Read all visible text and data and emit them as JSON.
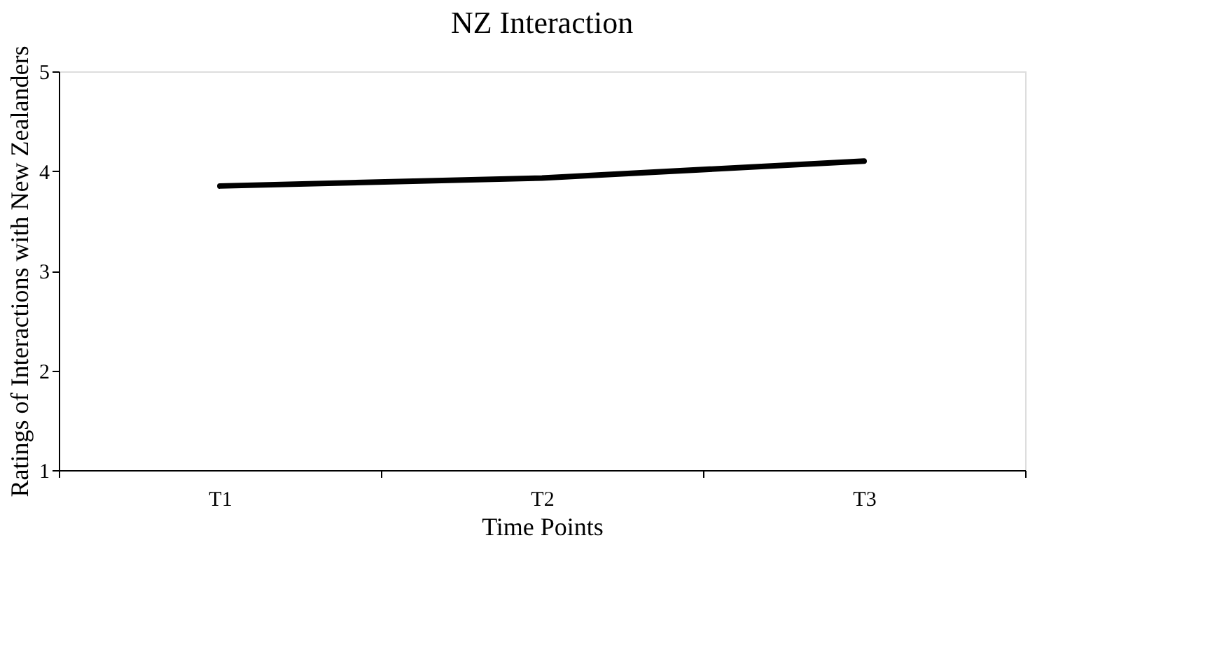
{
  "chart_data": {
    "type": "line",
    "title": "NZ Interaction",
    "xlabel": "Time Points",
    "ylabel": "Ratings of Interactions with New Zealanders",
    "categories": [
      "T1",
      "T2",
      "T3"
    ],
    "series": [
      {
        "color": "#000000",
        "values": [
          3.85,
          3.93,
          4.1
        ]
      }
    ],
    "ylim": [
      1,
      5
    ],
    "yticks": [
      1,
      2,
      3,
      4,
      5
    ],
    "grid": false,
    "marker": "none",
    "line_style": "solid"
  }
}
